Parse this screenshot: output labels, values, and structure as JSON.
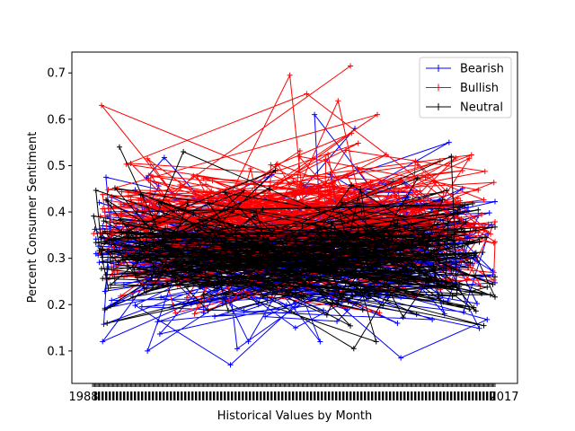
{
  "chart_data": {
    "type": "line",
    "title": "",
    "xlabel": "Historical Values by Month",
    "ylabel": "Percent Consumer Sentiment",
    "ylim": [
      0.03,
      0.745
    ],
    "yticks": [
      0.1,
      0.2,
      0.3,
      0.4,
      0.5,
      0.6,
      0.7
    ],
    "ytick_labels": [
      "0.1",
      "0.2",
      "0.3",
      "0.4",
      "0.5",
      "0.6",
      "0.7"
    ],
    "xtick_labels_visible": [
      "1988",
      "2017"
    ],
    "x_order": "unsorted monthly records (points joined in file order, producing a tangled web across the axis)",
    "point_count_per_series": 360,
    "grid": false,
    "legend_placement": "top-right",
    "series": [
      {
        "name": "Bearish",
        "color": "#0000ff",
        "marker": "+",
        "approx_mean": 0.31,
        "approx_range": [
          0.07,
          0.61
        ],
        "notable_values": [
          0.58,
          0.61,
          0.55,
          0.47,
          0.41,
          0.35,
          0.3,
          0.25,
          0.2,
          0.15,
          0.1,
          0.085,
          0.068
        ]
      },
      {
        "name": "Bullish",
        "color": "#ff0000",
        "marker": "+",
        "approx_mean": 0.38,
        "approx_range": [
          0.18,
          0.715
        ],
        "notable_values": [
          0.715,
          0.695,
          0.655,
          0.64,
          0.63,
          0.61,
          0.57,
          0.52,
          0.45,
          0.38,
          0.3,
          0.24,
          0.18
        ]
      },
      {
        "name": "Neutral",
        "color": "#000000",
        "marker": "+",
        "approx_mean": 0.31,
        "approx_range": [
          0.105,
          0.54
        ],
        "notable_values": [
          0.54,
          0.53,
          0.52,
          0.49,
          0.45,
          0.4,
          0.35,
          0.3,
          0.25,
          0.2,
          0.16,
          0.12,
          0.105
        ]
      }
    ]
  }
}
